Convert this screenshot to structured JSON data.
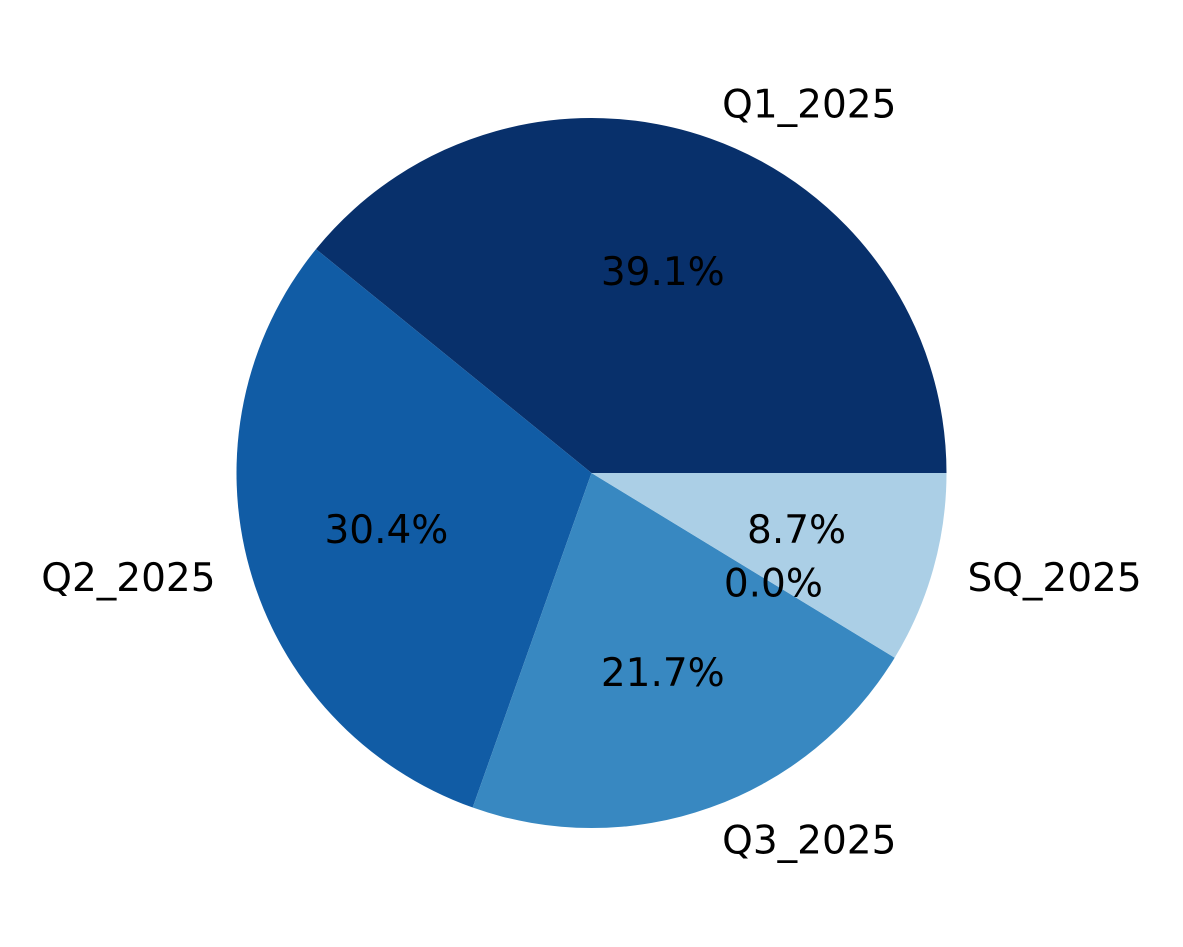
{
  "chart_data": {
    "type": "pie",
    "title": "",
    "slices": [
      {
        "label": "Q1_2025",
        "percent_label": "39.1%",
        "value": 39.1,
        "color": "#08306b"
      },
      {
        "label": "Q2_2025",
        "percent_label": "30.4%",
        "value": 30.4,
        "color": "#115ca5"
      },
      {
        "label": "Q3_2025",
        "percent_label": "21.7%",
        "value": 21.7,
        "color": "#3888c1"
      },
      {
        "label": "",
        "percent_label": "0.0%",
        "value": 0.0,
        "color": "#6aaed6"
      },
      {
        "label": "SQ_2025",
        "percent_label": "8.7%",
        "value": 8.7,
        "color": "#abcfe6"
      }
    ],
    "start_angle_deg": 0,
    "direction": "counterclockwise",
    "legend": "none"
  }
}
